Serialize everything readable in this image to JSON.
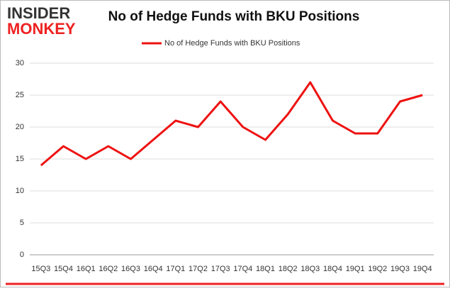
{
  "logo": {
    "line1": "INSIDER",
    "line2": "MONKEY"
  },
  "chart_data": {
    "type": "line",
    "title": "No of Hedge Funds with BKU Positions",
    "categories": [
      "15Q3",
      "15Q4",
      "16Q1",
      "16Q2",
      "16Q3",
      "16Q4",
      "17Q1",
      "17Q2",
      "17Q3",
      "17Q4",
      "18Q1",
      "18Q2",
      "18Q3",
      "18Q4",
      "19Q1",
      "19Q2",
      "19Q3",
      "19Q4"
    ],
    "series": [
      {
        "name": "No of Hedge Funds with BKU Positions",
        "color": "#ee1111",
        "values": [
          14,
          17,
          15,
          17,
          15,
          18,
          21,
          20,
          24,
          20,
          18,
          22,
          27,
          21,
          19,
          19,
          24,
          25
        ]
      }
    ],
    "ylim": [
      0,
      30
    ],
    "yticks": [
      0,
      5,
      10,
      15,
      20,
      25,
      30
    ],
    "grid": true,
    "legend": "top"
  }
}
